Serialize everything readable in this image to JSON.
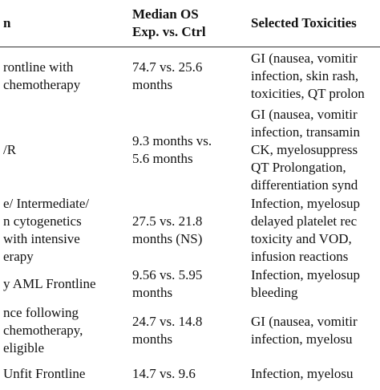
{
  "table": {
    "header": [
      [
        "n"
      ],
      [
        "Median OS",
        "Exp. vs. Ctrl"
      ],
      [
        "Selected Toxicities"
      ]
    ],
    "rows": [
      [
        [
          "rontline with",
          "chemotherapy"
        ],
        [
          "74.7 vs. 25.6",
          "months"
        ],
        [
          "GI (nausea, vomitir",
          "infection, skin rash,",
          "toxicities, QT prolon"
        ]
      ],
      [
        [
          "/R"
        ],
        [
          "9.3 months vs.",
          "5.6 months"
        ],
        [
          "GI (nausea, vomitir",
          "infection, transamin",
          "CK, myelosuppress",
          "QT Prolongation,",
          "differentiation synd"
        ]
      ],
      [
        [
          "e/ Intermediate/",
          "n cytogenetics",
          "with intensive",
          "erapy"
        ],
        [
          "27.5 vs. 21.8",
          "months (NS)"
        ],
        [
          "Infection, myelosup",
          "delayed platelet rec",
          "toxicity and VOD,",
          "infusion reactions"
        ]
      ],
      [
        [
          "y AML Frontline"
        ],
        [
          "9.56 vs. 5.95",
          "months"
        ],
        [
          "Infection, myelosup",
          "bleeding"
        ]
      ],
      [
        [
          "nce following",
          "chemotherapy,",
          "eligible"
        ],
        [
          "24.7 vs. 14.8",
          "months"
        ],
        [
          "GI (nausea, vomitir",
          "infection, myelosu"
        ]
      ],
      [
        [
          "Unfit Frontline"
        ],
        [
          "14.7 vs. 9.6"
        ],
        [
          "Infection, myelosu"
        ]
      ]
    ]
  }
}
